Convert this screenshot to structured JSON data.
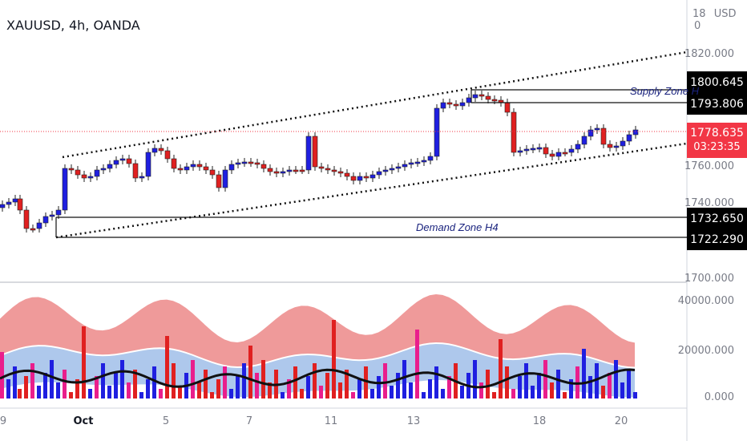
{
  "symbol_title": "XAUUSD, 4h, OANDA",
  "currency_header": {
    "cut_value": "18",
    "currency": "USD",
    "zero": "0"
  },
  "price_axis_labels": [
    "1820.000",
    "1760.000",
    "1740.000",
    "1700.000"
  ],
  "volume_axis_labels": [
    "40000.000",
    "20000.000",
    "0.000"
  ],
  "time_axis_labels": [
    "9",
    "Oct",
    "5",
    "7",
    "11",
    "13",
    "18",
    "20"
  ],
  "price_tags": {
    "supply_top": "1800.645",
    "supply_bottom": "1793.806",
    "current_price": "1778.635",
    "countdown": "03:23:35",
    "demand_top": "1732.650",
    "demand_bottom": "1722.290"
  },
  "zones": {
    "supply_label": "Supply Zone H",
    "demand_label": "Demand Zone H4"
  },
  "colors": {
    "bull": "#1f1fe0",
    "bear": "#e02020",
    "current_tag": "#f23645",
    "tag_bg": "#000000",
    "zone_text": "#1a237e",
    "grid": "#d1d4dc"
  }
}
